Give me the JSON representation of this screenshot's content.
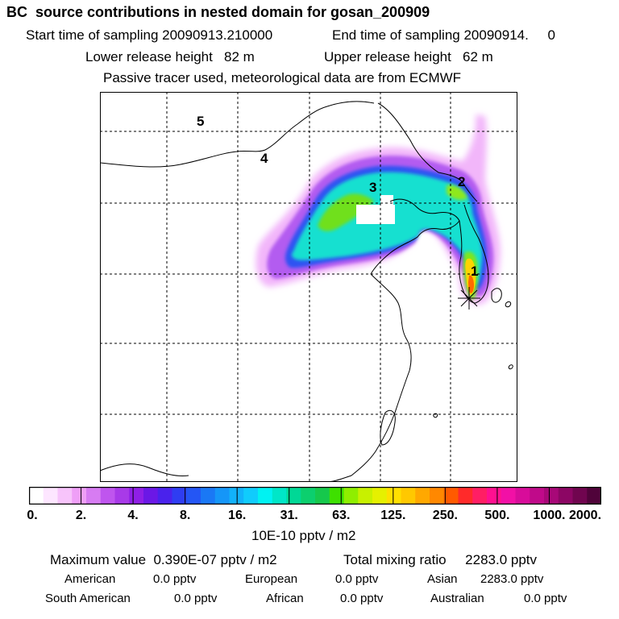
{
  "header": {
    "title": "BC  source contributions in nested domain for gosan_200909",
    "start_label": "Start time of sampling 20090913.210000",
    "end_label": "End time of sampling 20090914.     0",
    "lower_label": "Lower release height   82 m",
    "upper_label": "Upper release height   62 m",
    "tracer_note": "Passive tracer used, meteorological data are from ECMWF"
  },
  "map": {
    "region_labels": [
      "1",
      "2",
      "3",
      "4",
      "5"
    ],
    "release_marker": "star"
  },
  "colorbar": {
    "tick_labels": [
      "0.",
      "2.",
      "4.",
      "8.",
      "16.",
      "31.",
      "63.",
      "125.",
      "250.",
      "500.",
      "1000.",
      "2000."
    ],
    "colors": [
      "#ffffff",
      "#fde6ff",
      "#f7c4fb",
      "#ef9ff7",
      "#d77cf2",
      "#bf55ee",
      "#a83ae8",
      "#8f1fe6",
      "#6b18e6",
      "#4a22ec",
      "#2f3df2",
      "#2456f5",
      "#1a78f5",
      "#1596f8",
      "#12b2fa",
      "#10ccfc",
      "#00f2f2",
      "#00e6c8",
      "#00d896",
      "#0ccf6e",
      "#16c84c",
      "#3ee000",
      "#8fee00",
      "#c8f000",
      "#e6f000",
      "#ffe000",
      "#ffc800",
      "#ffa800",
      "#ff8800",
      "#ff5a00",
      "#ff2a2a",
      "#ff1e64",
      "#ff1090",
      "#f210a6",
      "#d80c9a",
      "#c00a8a",
      "#a80878",
      "#8c0664",
      "#70054f",
      "#50033a"
    ],
    "unit": "10E-10 pptv / m2"
  },
  "summary": {
    "max_label": "Maximum value  0.390E-07 pptv / m2",
    "total_label": "Total mixing ratio     2283.0 pptv",
    "american_label": "American",
    "american_value": "0.0 pptv",
    "european_label": "European",
    "european_value": "0.0 pptv",
    "asian_label": "Asian",
    "asian_value": "2283.0 pptv",
    "south_american_label": "South American",
    "south_american_value": "0.0 pptv",
    "african_label": "African",
    "african_value": "0.0 pptv",
    "australian_label": "Australian",
    "australian_value": "0.0 pptv"
  }
}
